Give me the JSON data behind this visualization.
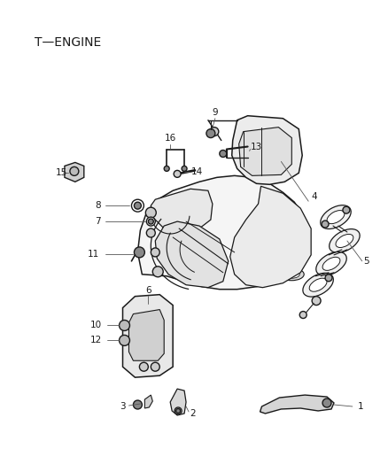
{
  "title": "T—ENGINE",
  "bg_color": "#ffffff",
  "line_color": "#1a1a1a",
  "title_fontsize": 10,
  "label_fontsize": 7.5,
  "figsize": [
    4.38,
    5.33
  ],
  "dpi": 100
}
